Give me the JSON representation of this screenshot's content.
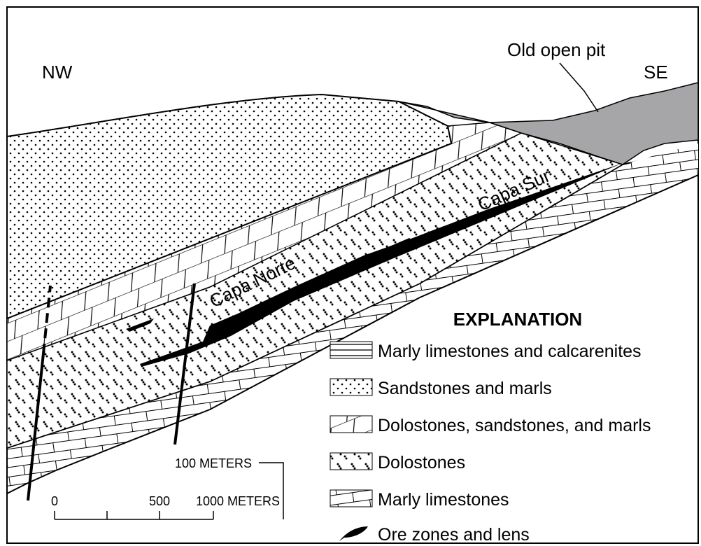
{
  "labels": {
    "nw": "NW",
    "se": "SE",
    "pit": "Old open pit",
    "capa_norte": "Capa Norte",
    "capa_sur": "Capa Sur"
  },
  "explanation": {
    "title": "EXPLANATION",
    "items": [
      "Marly limestones and calcarenites",
      "Sandstones and marls",
      "Dolostones, sandstones, and marls",
      "Dolostones",
      "Marly limestones",
      "Ore zones and lens"
    ]
  },
  "scale": {
    "vertical": "100 METERS",
    "horizontal": [
      "0",
      "500",
      "1000 METERS"
    ]
  }
}
